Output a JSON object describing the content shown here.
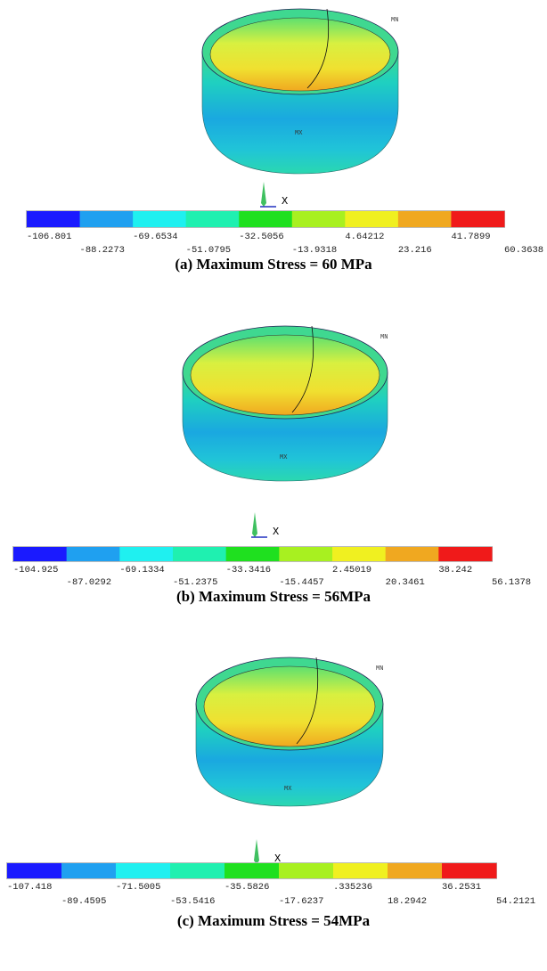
{
  "panels": [
    {
      "labels": [
        "-106.801",
        "-88.2273",
        "-69.6534",
        "-51.0795",
        "-32.5056",
        "-13.9318",
        "4.64212",
        "23.216",
        "41.7899",
        "60.3638"
      ],
      "caption": "(a) Maximum Stress = 60 MPa",
      "min_label": "MN",
      "max_label": "MX",
      "axis_label": "X"
    },
    {
      "labels": [
        "-104.925",
        "-87.0292",
        "-69.1334",
        "-51.2375",
        "-33.3416",
        "-15.4457",
        "2.45019",
        "20.3461",
        "38.242",
        "56.1378"
      ],
      "caption": "(b) Maximum Stress = 56MPa",
      "min_label": "MN",
      "max_label": "MX",
      "axis_label": "X"
    },
    {
      "labels": [
        "-107.418",
        "-89.4595",
        "-71.5005",
        "-53.5416",
        "-35.5826",
        "-17.6237",
        ".335236",
        "18.2942",
        "36.2531",
        "54.2121"
      ],
      "caption": "(c) Maximum Stress = 54MPa",
      "min_label": "MN",
      "max_label": "MX",
      "axis_label": "X"
    }
  ]
}
